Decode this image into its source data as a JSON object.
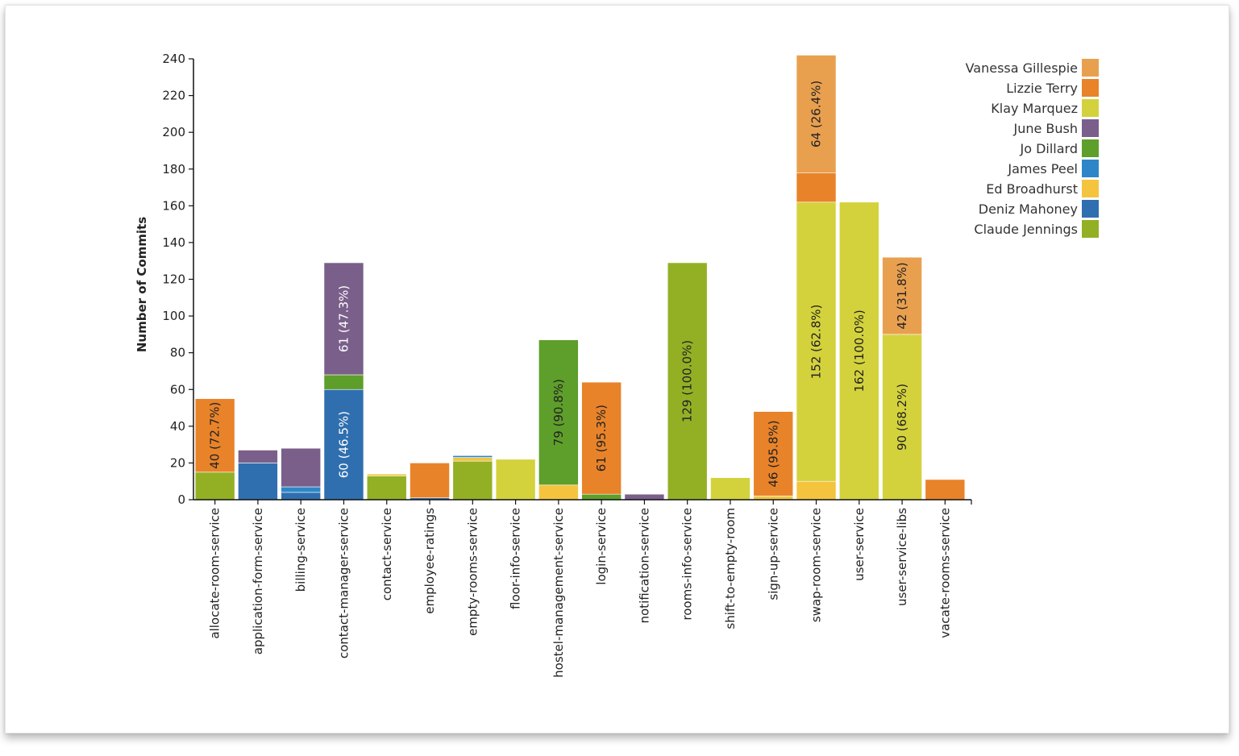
{
  "chart_data": {
    "type": "bar",
    "stacked": true,
    "title": "",
    "xlabel": "",
    "ylabel": "Number of Commits",
    "ylim": [
      0,
      240
    ],
    "yticks": [
      0,
      20,
      40,
      60,
      80,
      100,
      120,
      140,
      160,
      180,
      200,
      220,
      240
    ],
    "grid": false,
    "legend_position": "top-right",
    "categories": [
      "allocate-room-service",
      "application-form-service",
      "billing-service",
      "contact-manager-service",
      "contact-service",
      "employee-ratings",
      "empty-rooms-service",
      "floor-info-service",
      "hostel-management-service",
      "login-service",
      "notification-service",
      "rooms-info-service",
      "shift-to-empty-room",
      "sign-up-service",
      "swap-room-service",
      "user-service",
      "user-service-libs",
      "vacate-rooms-service"
    ],
    "series": [
      {
        "name": "Claude Jennings",
        "color": "#93b025",
        "values": [
          15,
          0,
          0,
          0,
          13,
          0,
          21,
          0,
          0,
          0,
          0,
          129,
          0,
          0,
          0,
          0,
          0,
          0
        ]
      },
      {
        "name": "Deniz Mahoney",
        "color": "#2f6faf",
        "values": [
          0,
          20,
          4,
          60,
          0,
          1,
          0,
          0,
          0,
          0,
          0,
          0,
          0,
          0,
          0,
          0,
          0,
          0
        ]
      },
      {
        "name": "Ed Broadhurst",
        "color": "#f4c43f",
        "values": [
          0,
          0,
          0,
          0,
          1,
          0,
          2,
          0,
          8,
          0,
          0,
          0,
          0,
          2,
          10,
          0,
          0,
          0
        ]
      },
      {
        "name": "James Peel",
        "color": "#2e86c8",
        "values": [
          0,
          0,
          3,
          0,
          0,
          0,
          1,
          0,
          0,
          0,
          0,
          0,
          0,
          0,
          0,
          0,
          0,
          0
        ]
      },
      {
        "name": "Jo Dillard",
        "color": "#5e9e2a",
        "values": [
          0,
          0,
          0,
          8,
          0,
          0,
          0,
          0,
          79,
          3,
          0,
          0,
          0,
          0,
          0,
          0,
          0,
          0
        ]
      },
      {
        "name": "June Bush",
        "color": "#7a5f8a",
        "values": [
          0,
          7,
          21,
          61,
          0,
          0,
          0,
          0,
          0,
          0,
          3,
          0,
          0,
          0,
          0,
          0,
          0,
          0
        ]
      },
      {
        "name": "Klay Marquez",
        "color": "#d4d23c",
        "values": [
          0,
          0,
          0,
          0,
          0,
          0,
          0,
          22,
          0,
          0,
          0,
          0,
          12,
          0,
          152,
          162,
          90,
          0
        ]
      },
      {
        "name": "Lizzie Terry",
        "color": "#e8832a",
        "values": [
          40,
          0,
          0,
          0,
          0,
          19,
          0,
          0,
          0,
          61,
          0,
          0,
          0,
          46,
          16,
          0,
          0,
          11
        ]
      },
      {
        "name": "Vanessa Gillespie",
        "color": "#e8a04f",
        "values": [
          0,
          0,
          0,
          0,
          0,
          0,
          0,
          0,
          0,
          0,
          0,
          0,
          0,
          0,
          64,
          0,
          42,
          0
        ]
      }
    ],
    "legend_order": [
      "Vanessa Gillespie",
      "Lizzie Terry",
      "Klay Marquez",
      "June Bush",
      "Jo Dillard",
      "James Peel",
      "Ed Broadhurst",
      "Deniz Mahoney",
      "Claude Jennings"
    ],
    "data_labels": [
      {
        "category": "allocate-room-service",
        "series": "Lizzie Terry",
        "text": "40 (72.7%)",
        "color": "#222222"
      },
      {
        "category": "contact-manager-service",
        "series": "Deniz Mahoney",
        "text": "60 (46.5%)",
        "color": "#ffffff"
      },
      {
        "category": "contact-manager-service",
        "series": "June Bush",
        "text": "61 (47.3%)",
        "color": "#ffffff"
      },
      {
        "category": "hostel-management-service",
        "series": "Jo Dillard",
        "text": "79 (90.8%)",
        "color": "#222222"
      },
      {
        "category": "login-service",
        "series": "Lizzie Terry",
        "text": "61 (95.3%)",
        "color": "#222222"
      },
      {
        "category": "rooms-info-service",
        "series": "Claude Jennings",
        "text": "129 (100.0%)",
        "color": "#222222"
      },
      {
        "category": "sign-up-service",
        "series": "Lizzie Terry",
        "text": "46 (95.8%)",
        "color": "#222222"
      },
      {
        "category": "swap-room-service",
        "series": "Klay Marquez",
        "text": "152 (62.8%)",
        "color": "#222222"
      },
      {
        "category": "swap-room-service",
        "series": "Vanessa Gillespie",
        "text": "64 (26.4%)",
        "color": "#222222"
      },
      {
        "category": "user-service",
        "series": "Klay Marquez",
        "text": "162 (100.0%)",
        "color": "#222222"
      },
      {
        "category": "user-service-libs",
        "series": "Klay Marquez",
        "text": "90 (68.2%)",
        "color": "#222222"
      },
      {
        "category": "user-service-libs",
        "series": "Vanessa Gillespie",
        "text": "42 (31.8%)",
        "color": "#222222"
      }
    ]
  }
}
